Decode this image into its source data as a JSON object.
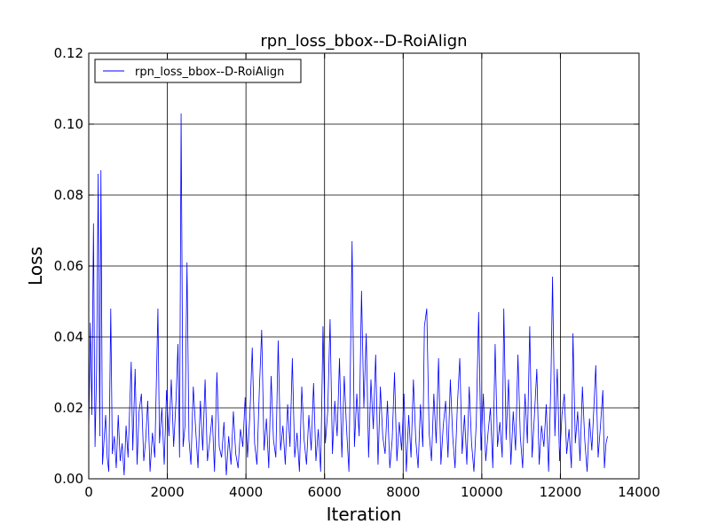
{
  "chart_data": {
    "type": "line",
    "title": "rpn_loss_bbox--D-RoiAlign",
    "xlabel": "Iteration",
    "ylabel": "Loss",
    "xlim": [
      0,
      14000
    ],
    "ylim": [
      0,
      0.12
    ],
    "x_ticks": [
      "0",
      "2000",
      "4000",
      "6000",
      "8000",
      "10000",
      "12000",
      "14000"
    ],
    "y_ticks": [
      "0.00",
      "0.02",
      "0.04",
      "0.06",
      "0.08",
      "0.10",
      "0.12"
    ],
    "grid": true,
    "legend_position": "top-left",
    "series": [
      {
        "name": "rpn_loss_bbox--D-RoiAlign",
        "color": "#0000ff",
        "points": [
          [
            0,
            0.013
          ],
          [
            40,
            0.044
          ],
          [
            80,
            0.018
          ],
          [
            120,
            0.072
          ],
          [
            160,
            0.009
          ],
          [
            200,
            0.031
          ],
          [
            240,
            0.086
          ],
          [
            280,
            0.012
          ],
          [
            310,
            0.087
          ],
          [
            350,
            0.004
          ],
          [
            390,
            0.011
          ],
          [
            430,
            0.018
          ],
          [
            470,
            0.006
          ],
          [
            510,
            0.002
          ],
          [
            560,
            0.048
          ],
          [
            600,
            0.007
          ],
          [
            650,
            0.012
          ],
          [
            700,
            0.003
          ],
          [
            750,
            0.018
          ],
          [
            800,
            0.005
          ],
          [
            850,
            0.01
          ],
          [
            900,
            0.001
          ],
          [
            950,
            0.015
          ],
          [
            1000,
            0.006
          ],
          [
            1080,
            0.033
          ],
          [
            1120,
            0.008
          ],
          [
            1180,
            0.031
          ],
          [
            1230,
            0.004
          ],
          [
            1280,
            0.019
          ],
          [
            1340,
            0.024
          ],
          [
            1400,
            0.005
          ],
          [
            1450,
            0.011
          ],
          [
            1500,
            0.022
          ],
          [
            1560,
            0.002
          ],
          [
            1620,
            0.013
          ],
          [
            1680,
            0.006
          ],
          [
            1760,
            0.048
          ],
          [
            1800,
            0.01
          ],
          [
            1860,
            0.02
          ],
          [
            1920,
            0.004
          ],
          [
            1980,
            0.025
          ],
          [
            2040,
            0.012
          ],
          [
            2100,
            0.028
          ],
          [
            2160,
            0.009
          ],
          [
            2220,
            0.022
          ],
          [
            2270,
            0.038
          ],
          [
            2310,
            0.006
          ],
          [
            2350,
            0.103
          ],
          [
            2400,
            0.009
          ],
          [
            2450,
            0.015
          ],
          [
            2500,
            0.061
          ],
          [
            2550,
            0.011
          ],
          [
            2600,
            0.004
          ],
          [
            2660,
            0.026
          ],
          [
            2720,
            0.014
          ],
          [
            2780,
            0.003
          ],
          [
            2840,
            0.022
          ],
          [
            2900,
            0.008
          ],
          [
            2960,
            0.028
          ],
          [
            3020,
            0.005
          ],
          [
            3080,
            0.011
          ],
          [
            3140,
            0.018
          ],
          [
            3200,
            0.002
          ],
          [
            3260,
            0.03
          ],
          [
            3320,
            0.009
          ],
          [
            3380,
            0.006
          ],
          [
            3440,
            0.016
          ],
          [
            3500,
            0.001
          ],
          [
            3560,
            0.012
          ],
          [
            3620,
            0.004
          ],
          [
            3680,
            0.019
          ],
          [
            3740,
            0.007
          ],
          [
            3800,
            0.003
          ],
          [
            3860,
            0.014
          ],
          [
            3920,
            0.009
          ],
          [
            3980,
            0.023
          ],
          [
            4040,
            0.006
          ],
          [
            4100,
            0.018
          ],
          [
            4160,
            0.037
          ],
          [
            4220,
            0.01
          ],
          [
            4280,
            0.004
          ],
          [
            4340,
            0.025
          ],
          [
            4400,
            0.042
          ],
          [
            4460,
            0.008
          ],
          [
            4520,
            0.017
          ],
          [
            4580,
            0.003
          ],
          [
            4640,
            0.029
          ],
          [
            4700,
            0.011
          ],
          [
            4760,
            0.006
          ],
          [
            4820,
            0.039
          ],
          [
            4880,
            0.008
          ],
          [
            4940,
            0.015
          ],
          [
            5000,
            0.004
          ],
          [
            5060,
            0.021
          ],
          [
            5120,
            0.009
          ],
          [
            5180,
            0.034
          ],
          [
            5240,
            0.006
          ],
          [
            5300,
            0.013
          ],
          [
            5360,
            0.002
          ],
          [
            5420,
            0.026
          ],
          [
            5480,
            0.011
          ],
          [
            5540,
            0.004
          ],
          [
            5600,
            0.018
          ],
          [
            5660,
            0.008
          ],
          [
            5720,
            0.027
          ],
          [
            5780,
            0.005
          ],
          [
            5840,
            0.014
          ],
          [
            5900,
            0.002
          ],
          [
            5960,
            0.043
          ],
          [
            6020,
            0.01
          ],
          [
            6080,
            0.019
          ],
          [
            6140,
            0.045
          ],
          [
            6200,
            0.007
          ],
          [
            6260,
            0.022
          ],
          [
            6320,
            0.012
          ],
          [
            6380,
            0.034
          ],
          [
            6440,
            0.006
          ],
          [
            6500,
            0.029
          ],
          [
            6560,
            0.014
          ],
          [
            6620,
            0.002
          ],
          [
            6700,
            0.067
          ],
          [
            6760,
            0.009
          ],
          [
            6820,
            0.024
          ],
          [
            6880,
            0.012
          ],
          [
            6940,
            0.053
          ],
          [
            7000,
            0.02
          ],
          [
            7060,
            0.041
          ],
          [
            7120,
            0.006
          ],
          [
            7180,
            0.028
          ],
          [
            7240,
            0.014
          ],
          [
            7300,
            0.035
          ],
          [
            7360,
            0.004
          ],
          [
            7420,
            0.026
          ],
          [
            7480,
            0.012
          ],
          [
            7540,
            0.007
          ],
          [
            7600,
            0.022
          ],
          [
            7660,
            0.003
          ],
          [
            7720,
            0.011
          ],
          [
            7780,
            0.03
          ],
          [
            7840,
            0.005
          ],
          [
            7900,
            0.016
          ],
          [
            7960,
            0.008
          ],
          [
            8020,
            0.024
          ],
          [
            8080,
            0.002
          ],
          [
            8140,
            0.018
          ],
          [
            8200,
            0.006
          ],
          [
            8260,
            0.028
          ],
          [
            8320,
            0.011
          ],
          [
            8380,
            0.003
          ],
          [
            8440,
            0.021
          ],
          [
            8500,
            0.009
          ],
          [
            8540,
            0.043
          ],
          [
            8600,
            0.048
          ],
          [
            8660,
            0.013
          ],
          [
            8720,
            0.005
          ],
          [
            8780,
            0.024
          ],
          [
            8840,
            0.01
          ],
          [
            8900,
            0.034
          ],
          [
            8960,
            0.004
          ],
          [
            9020,
            0.015
          ],
          [
            9080,
            0.022
          ],
          [
            9140,
            0.006
          ],
          [
            9200,
            0.028
          ],
          [
            9260,
            0.012
          ],
          [
            9320,
            0.003
          ],
          [
            9380,
            0.021
          ],
          [
            9440,
            0.034
          ],
          [
            9500,
            0.007
          ],
          [
            9560,
            0.018
          ],
          [
            9620,
            0.004
          ],
          [
            9680,
            0.026
          ],
          [
            9740,
            0.01
          ],
          [
            9800,
            0.002
          ],
          [
            9860,
            0.016
          ],
          [
            9920,
            0.047
          ],
          [
            9980,
            0.008
          ],
          [
            10040,
            0.024
          ],
          [
            10100,
            0.005
          ],
          [
            10160,
            0.013
          ],
          [
            10220,
            0.02
          ],
          [
            10280,
            0.003
          ],
          [
            10340,
            0.038
          ],
          [
            10400,
            0.009
          ],
          [
            10460,
            0.016
          ],
          [
            10520,
            0.006
          ],
          [
            10560,
            0.048
          ],
          [
            10620,
            0.011
          ],
          [
            10680,
            0.028
          ],
          [
            10740,
            0.004
          ],
          [
            10800,
            0.019
          ],
          [
            10860,
            0.008
          ],
          [
            10920,
            0.035
          ],
          [
            10980,
            0.012
          ],
          [
            11040,
            0.003
          ],
          [
            11100,
            0.024
          ],
          [
            11160,
            0.01
          ],
          [
            11220,
            0.043
          ],
          [
            11280,
            0.006
          ],
          [
            11340,
            0.018
          ],
          [
            11400,
            0.031
          ],
          [
            11460,
            0.004
          ],
          [
            11520,
            0.015
          ],
          [
            11580,
            0.009
          ],
          [
            11640,
            0.021
          ],
          [
            11700,
            0.002
          ],
          [
            11760,
            0.028
          ],
          [
            11800,
            0.057
          ],
          [
            11860,
            0.012
          ],
          [
            11920,
            0.031
          ],
          [
            11980,
            0.005
          ],
          [
            12040,
            0.018
          ],
          [
            12100,
            0.024
          ],
          [
            12160,
            0.007
          ],
          [
            12220,
            0.014
          ],
          [
            12280,
            0.003
          ],
          [
            12320,
            0.041
          ],
          [
            12380,
            0.01
          ],
          [
            12440,
            0.019
          ],
          [
            12500,
            0.005
          ],
          [
            12560,
            0.026
          ],
          [
            12620,
            0.011
          ],
          [
            12680,
            0.002
          ],
          [
            12740,
            0.017
          ],
          [
            12800,
            0.008
          ],
          [
            12860,
            0.022
          ],
          [
            12900,
            0.032
          ],
          [
            12960,
            0.006
          ],
          [
            13020,
            0.015
          ],
          [
            13080,
            0.025
          ],
          [
            13120,
            0.003
          ],
          [
            13160,
            0.01
          ],
          [
            13200,
            0.012
          ]
        ]
      }
    ]
  }
}
